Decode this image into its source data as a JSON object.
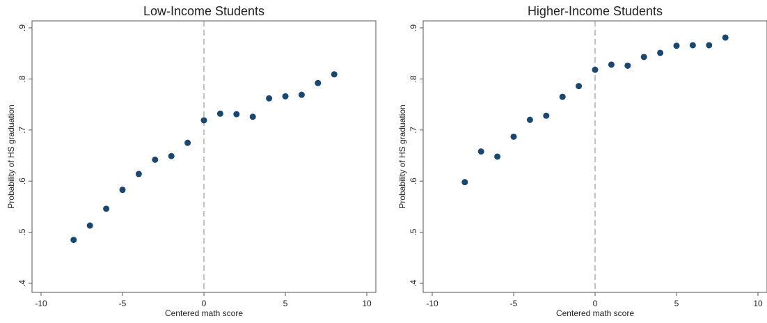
{
  "chart_data": [
    {
      "type": "scatter",
      "title": "Low-Income Students",
      "x_label": "Centered math score",
      "y_label": "Probability of HS graduation",
      "x": [
        -8,
        -7,
        -6,
        -5,
        -4,
        -3,
        -2,
        -1,
        0,
        1,
        2,
        3,
        4,
        5,
        6,
        7,
        8
      ],
      "series": [
        {
          "color": "#1a476f",
          "values": [
            0.485,
            0.513,
            0.546,
            0.583,
            0.614,
            0.642,
            0.649,
            0.675,
            0.719,
            0.732,
            0.731,
            0.726,
            0.762,
            0.766,
            0.769,
            0.792,
            0.809
          ]
        }
      ],
      "xlim": [
        -10,
        10
      ],
      "ylim": [
        0.4,
        0.9
      ],
      "xticks": [
        -10,
        -5,
        0,
        5,
        10
      ],
      "yticks": [
        {
          "value": 0.4,
          "label": ".4"
        },
        {
          "value": 0.5,
          "label": ".5"
        },
        {
          "value": 0.6,
          "label": ".6"
        },
        {
          "value": 0.7,
          "label": ".7"
        },
        {
          "value": 0.8,
          "label": ".8"
        },
        {
          "value": 0.9,
          "label": ".9"
        }
      ],
      "vline": 0
    },
    {
      "type": "scatter",
      "title": "Higher-Income Students",
      "x_label": "Centered math score",
      "y_label": "Probability of HS graduation",
      "x": [
        -8,
        -7,
        -6,
        -5,
        -4,
        -3,
        -2,
        -1,
        0,
        1,
        2,
        3,
        4,
        5,
        6,
        7,
        8
      ],
      "series": [
        {
          "color": "#1a476f",
          "values": [
            0.598,
            0.658,
            0.648,
            0.687,
            0.72,
            0.728,
            0.765,
            0.786,
            0.818,
            0.828,
            0.826,
            0.843,
            0.851,
            0.865,
            0.866,
            0.866,
            0.881
          ]
        }
      ],
      "xlim": [
        -10,
        10
      ],
      "ylim": [
        0.4,
        0.9
      ],
      "xticks": [
        -10,
        -5,
        0,
        5,
        10
      ],
      "yticks": [
        {
          "value": 0.4,
          "label": ".4"
        },
        {
          "value": 0.5,
          "label": ".5"
        },
        {
          "value": 0.6,
          "label": ".6"
        },
        {
          "value": 0.7,
          "label": ".7"
        },
        {
          "value": 0.8,
          "label": ".8"
        },
        {
          "value": 0.9,
          "label": ".9"
        }
      ],
      "vline": 0
    }
  ]
}
